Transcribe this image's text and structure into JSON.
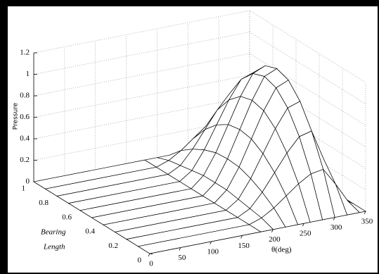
{
  "chart_data": {
    "type": "surface",
    "zlabel": "Pressure",
    "ylabel": [
      "Bearing",
      "Length"
    ],
    "xlabel": "θ(deg)",
    "x": [
      0,
      180,
      200,
      220,
      240,
      260,
      280,
      300,
      320,
      340,
      350
    ],
    "y": [
      0,
      0.1,
      0.2,
      0.3,
      0.4,
      0.5,
      0.6,
      0.7,
      0.8,
      0.9,
      1
    ],
    "z": [
      [
        0,
        0,
        0,
        0,
        0,
        0,
        0,
        0,
        0,
        0,
        0
      ],
      [
        0,
        0,
        0.04,
        0.11,
        0.2,
        0.29,
        0.36,
        0.38,
        0.22,
        0.04,
        0
      ],
      [
        0,
        0,
        0.06,
        0.19,
        0.35,
        0.51,
        0.64,
        0.67,
        0.38,
        0.06,
        0
      ],
      [
        0,
        0,
        0.08,
        0.25,
        0.46,
        0.67,
        0.84,
        0.88,
        0.5,
        0.08,
        0
      ],
      [
        0,
        0,
        0.1,
        0.29,
        0.53,
        0.77,
        0.96,
        1.01,
        0.58,
        0.1,
        0
      ],
      [
        0,
        0,
        0.1,
        0.3,
        0.55,
        0.8,
        1.0,
        1.05,
        0.6,
        0.1,
        0
      ],
      [
        0,
        0,
        0.1,
        0.29,
        0.53,
        0.77,
        0.96,
        1.01,
        0.58,
        0.1,
        0
      ],
      [
        0,
        0,
        0.08,
        0.25,
        0.46,
        0.67,
        0.84,
        0.88,
        0.5,
        0.08,
        0
      ],
      [
        0,
        0,
        0.06,
        0.19,
        0.35,
        0.51,
        0.64,
        0.67,
        0.38,
        0.06,
        0
      ],
      [
        0,
        0,
        0.04,
        0.11,
        0.2,
        0.29,
        0.36,
        0.38,
        0.22,
        0.04,
        0
      ],
      [
        0,
        0,
        0,
        0,
        0,
        0,
        0,
        0,
        0,
        0,
        0
      ]
    ],
    "xlim": [
      0,
      350
    ],
    "xticks": [
      0,
      50,
      100,
      150,
      200,
      250,
      300,
      350
    ],
    "ylim": [
      0,
      1
    ],
    "yticks": [
      0,
      0.2,
      0.4,
      0.6,
      0.8,
      1
    ],
    "zlim": [
      0,
      1.2
    ],
    "zticks": [
      0,
      0.2,
      0.4,
      0.6,
      0.8,
      1,
      1.2
    ],
    "grid": true,
    "color": "#ffffff"
  }
}
